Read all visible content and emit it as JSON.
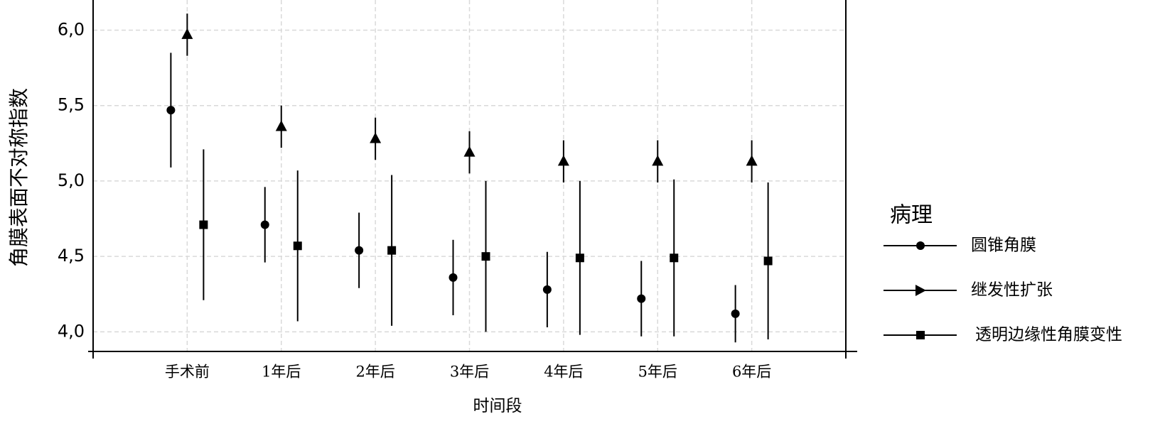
{
  "chart_data": {
    "type": "errorbar",
    "x_label": "时间段",
    "y_label": "角膜表面不对称指数",
    "legend_title": "病理",
    "legend_position": "right",
    "grid": true,
    "categories": [
      "手术前",
      "1年后",
      "2年后",
      "3年后",
      "4年后",
      "5年后",
      "6年后"
    ],
    "ylim": [
      3.87,
      6.2
    ],
    "yticks": [
      {
        "value": 4,
        "label": "4,0"
      },
      {
        "value": 4.5,
        "label": "4,5"
      },
      {
        "value": 5,
        "label": "5,0"
      },
      {
        "value": 5.5,
        "label": "5,5"
      },
      {
        "value": 6,
        "label": "6,0"
      }
    ],
    "series": [
      {
        "name": "圆锥角膜",
        "color": "#000000",
        "marker": "circle",
        "values": [
          5.47,
          4.71,
          4.54,
          4.36,
          4.28,
          4.22,
          4.12
        ],
        "errors": [
          0.38,
          0.25,
          0.25,
          0.25,
          0.25,
          0.25,
          0.19
        ]
      },
      {
        "name": "继发性扩张",
        "color": "#000000",
        "marker": "triangle",
        "values": [
          5.97,
          5.36,
          5.28,
          5.19,
          5.13,
          5.13,
          5.13
        ],
        "errors": [
          0.14,
          0.14,
          0.14,
          0.14,
          0.14,
          0.14,
          0.14
        ]
      },
      {
        "name": "透明边缘性角膜变性",
        "color": "#000000",
        "marker": "square",
        "values": [
          4.71,
          4.57,
          4.54,
          4.5,
          4.49,
          4.49,
          4.47
        ],
        "errors": [
          0.5,
          0.5,
          0.5,
          0.5,
          0.51,
          0.52,
          0.52
        ]
      }
    ]
  }
}
